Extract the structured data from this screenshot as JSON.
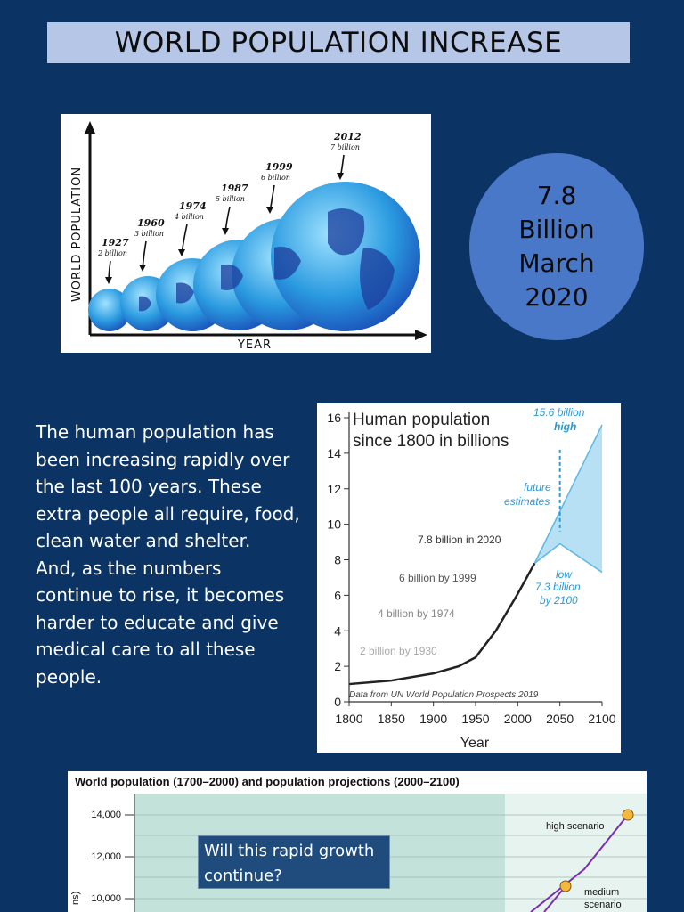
{
  "title": "WORLD POPULATION INCREASE",
  "globes": {
    "y_axis_label": "WORLD POPULATION",
    "x_axis_label": "YEAR",
    "milestones": [
      {
        "year": "1927",
        "pop": "2 billion"
      },
      {
        "year": "1960",
        "pop": "3 billion"
      },
      {
        "year": "1974",
        "pop": "4 billion"
      },
      {
        "year": "1987",
        "pop": "5 billion"
      },
      {
        "year": "1999",
        "pop": "6 billion"
      },
      {
        "year": "2012",
        "pop": "7 billion"
      }
    ]
  },
  "circle": {
    "lines": [
      "7.8",
      "Billion",
      "March",
      "2020"
    ]
  },
  "body_text": {
    "p1": "The human population has been increasing rapidly over the last 100 years. These extra people all require, food, clean water and shelter.",
    "p2": "And, as the numbers continue to rise, it becomes harder to educate and give medical care to all these people."
  },
  "chart_data": [
    {
      "type": "line",
      "title": "Human population since 1800 in billions",
      "xlabel": "Year",
      "ylabel": "",
      "xlim": [
        1800,
        2100
      ],
      "ylim": [
        0,
        16
      ],
      "x_ticks": [
        1800,
        1850,
        1900,
        1950,
        2000,
        2050,
        2100
      ],
      "y_ticks": [
        0,
        2,
        4,
        6,
        8,
        10,
        12,
        14,
        16
      ],
      "series": [
        {
          "x": [
            1800,
            1850,
            1900,
            1930,
            1950,
            1974,
            1999,
            2020
          ],
          "values": [
            1.0,
            1.2,
            1.6,
            2.0,
            2.5,
            4.0,
            6.0,
            7.8
          ]
        }
      ],
      "projection_high": {
        "x": [
          2020,
          2100
        ],
        "values": [
          7.8,
          15.6
        ]
      },
      "projection_low": {
        "x": [
          2020,
          2050,
          2100
        ],
        "values": [
          7.8,
          8.9,
          7.3
        ]
      },
      "annotations": {
        "a2020": "7.8 billion in 2020",
        "a1999": "6 billion by 1999",
        "a1974": "4 billion by 1974",
        "a1930": "2 billion by 1930",
        "high_value": "15.6 billion",
        "high": "high",
        "future1": "future",
        "future2": "estimates",
        "low": "low",
        "low_value": "7.3 billion",
        "low_year": "by 2100",
        "source": "Data from UN World Population Prospects 2019"
      }
    },
    {
      "type": "line",
      "title": "World population (1700–2000) and population projections (2000–2100)",
      "ylabel": "ns)",
      "y_ticks": [
        "14,000",
        "12,000",
        "10,000"
      ],
      "labels": {
        "high": "high scenario",
        "medium1": "medium",
        "medium2": "scenario"
      }
    }
  ],
  "callout": "Will this rapid growth continue?"
}
